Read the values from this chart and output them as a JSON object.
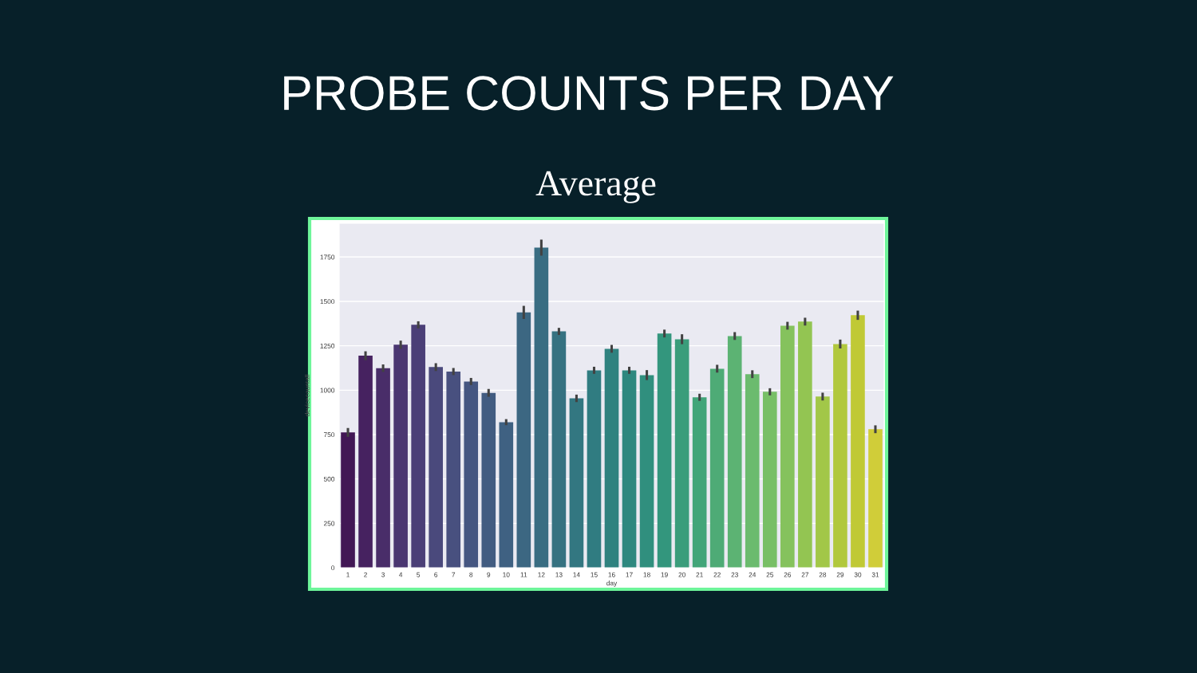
{
  "chart_data": {
    "type": "bar",
    "title": "PROBE COUNTS PER DAY",
    "subtitle": "Average",
    "xlabel": "day",
    "ylabel": "devicecountall",
    "categories": [
      "1",
      "2",
      "3",
      "4",
      "5",
      "6",
      "7",
      "8",
      "9",
      "10",
      "11",
      "12",
      "13",
      "14",
      "15",
      "16",
      "17",
      "18",
      "19",
      "20",
      "21",
      "22",
      "23",
      "24",
      "25",
      "26",
      "27",
      "28",
      "29",
      "30",
      "31"
    ],
    "values": [
      762,
      1194,
      1124,
      1256,
      1368,
      1130,
      1105,
      1049,
      985,
      820,
      1438,
      1803,
      1331,
      954,
      1112,
      1233,
      1112,
      1085,
      1319,
      1287,
      960,
      1121,
      1305,
      1090,
      991,
      1363,
      1386,
      964,
      1260,
      1422,
      780
    ],
    "errors": [
      25,
      25,
      21,
      23,
      20,
      22,
      20,
      20,
      22,
      17,
      37,
      45,
      20,
      21,
      20,
      22,
      20,
      28,
      22,
      28,
      20,
      22,
      22,
      22,
      20,
      22,
      22,
      22,
      25,
      26,
      22
    ],
    "colors": [
      "#421755",
      "#462260",
      "#492d69",
      "#4a3671",
      "#4b3f77",
      "#4a497c",
      "#48507f",
      "#455681",
      "#425c81",
      "#3f6182",
      "#3c6782",
      "#396d82",
      "#367281",
      "#337781",
      "#307c81",
      "#2f827f",
      "#2e887f",
      "#308f7e",
      "#33967d",
      "#3a9d7b",
      "#42a579",
      "#4eab76",
      "#5cb373",
      "#6bbb6e",
      "#78bf66",
      "#85c25d",
      "#93c552",
      "#a2c748",
      "#b1c83d",
      "#c0c935",
      "#d0cd39"
    ],
    "ylim": [
      0,
      1940
    ],
    "yticks": [
      0,
      250,
      500,
      750,
      1000,
      1250,
      1500,
      1750
    ],
    "grid": "y"
  }
}
